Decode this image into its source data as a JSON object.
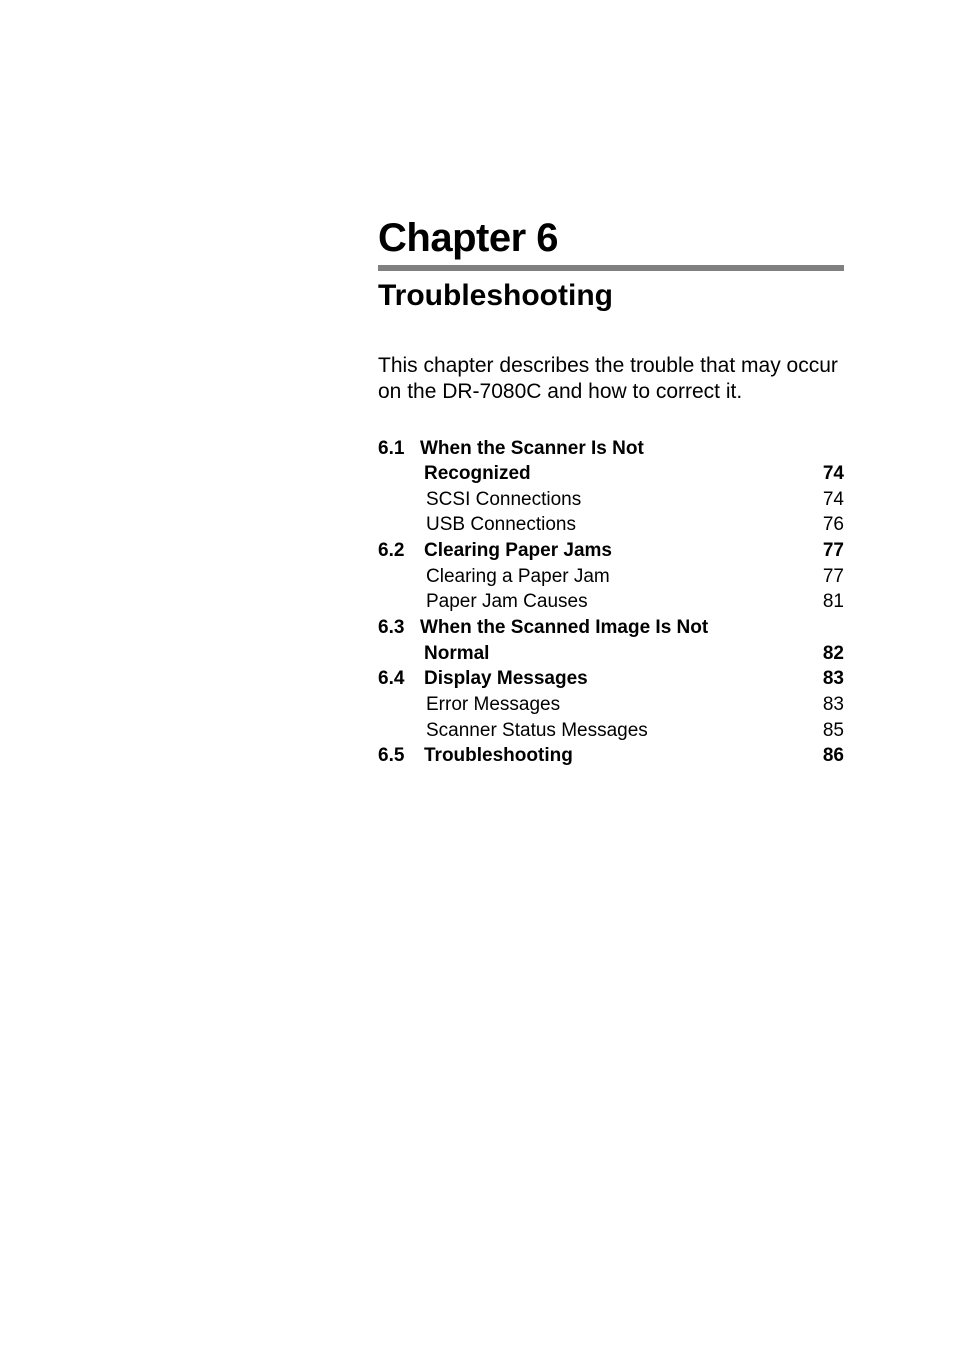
{
  "chapter": {
    "title": "Chapter 6",
    "subtitle": "Troubleshooting",
    "intro": "This chapter describes the trouble that may occur on the DR-7080C and how to correct it."
  },
  "toc": {
    "s1": {
      "num": "6.1",
      "label_a": "When the Scanner Is Not",
      "label_b": "Recognized",
      "page": "74"
    },
    "s1a": {
      "label": "SCSI Connections",
      "page": "74"
    },
    "s1b": {
      "label": "USB Connections",
      "page": "76"
    },
    "s2": {
      "num": "6.2",
      "label": "Clearing Paper Jams",
      "page": "77"
    },
    "s2a": {
      "label": "Clearing a Paper Jam",
      "page": "77"
    },
    "s2b": {
      "label": "Paper Jam Causes",
      "page": "81"
    },
    "s3": {
      "num": "6.3",
      "label_a": "When the Scanned Image Is Not",
      "label_b": "Normal",
      "page": "82"
    },
    "s4": {
      "num": "6.4",
      "label": "Display Messages",
      "page": "83"
    },
    "s4a": {
      "label": "Error Messages",
      "page": "83"
    },
    "s4b": {
      "label": "Scanner Status Messages",
      "page": "85"
    },
    "s5": {
      "num": "6.5",
      "label": "Troubleshooting",
      "page": "86"
    }
  }
}
